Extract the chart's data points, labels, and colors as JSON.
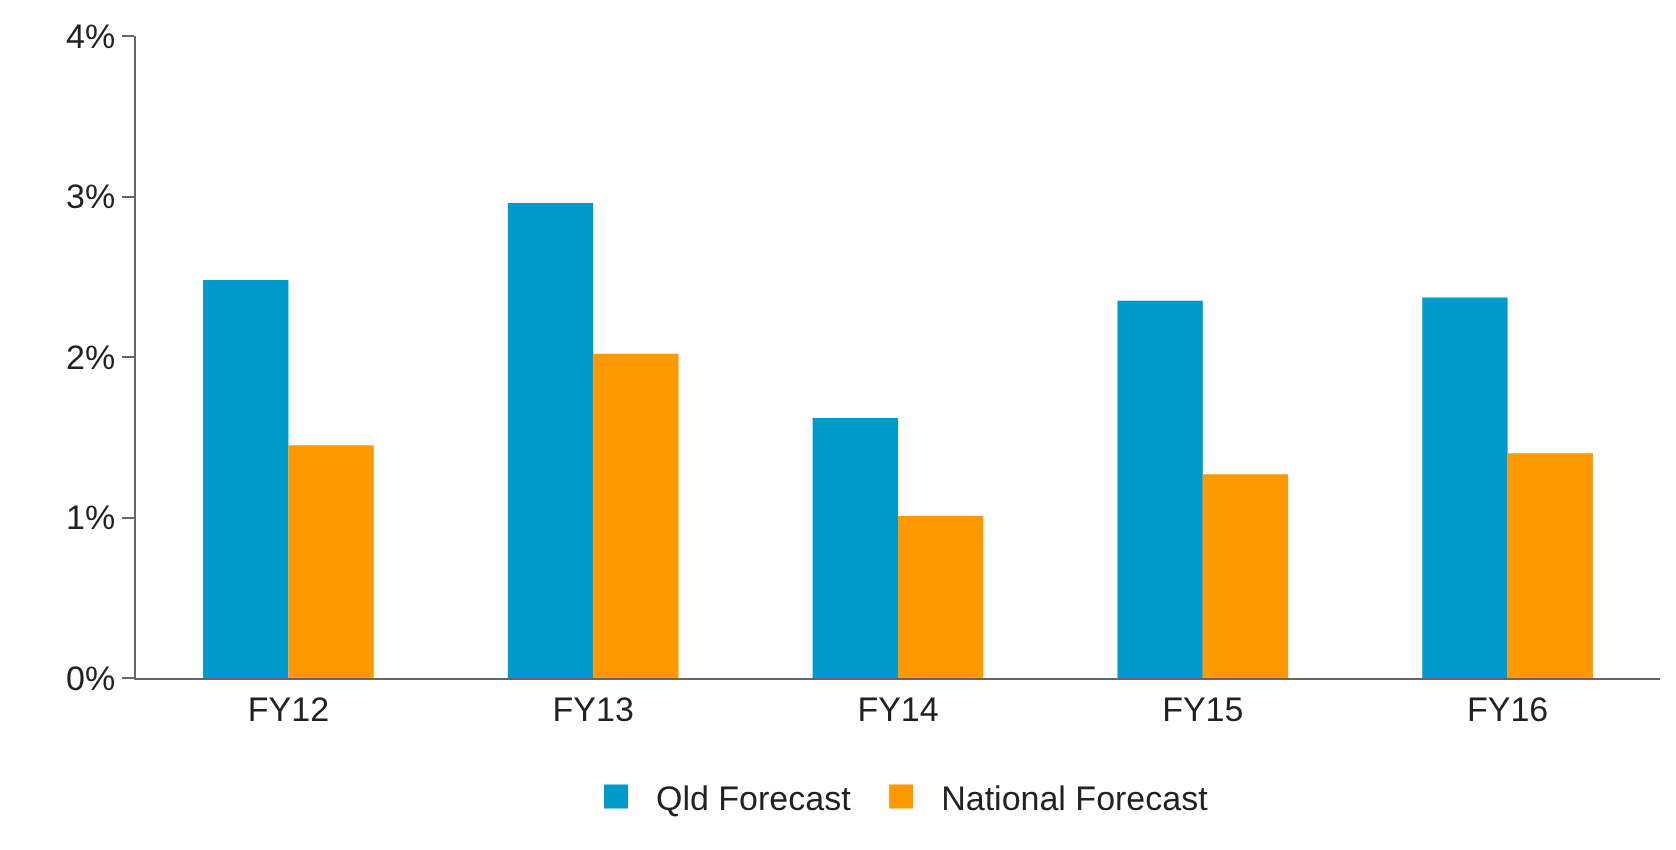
{
  "chart_data": {
    "type": "bar",
    "categories": [
      "FY12",
      "FY13",
      "FY14",
      "FY15",
      "FY16"
    ],
    "series": [
      {
        "name": "Qld Forecast",
        "color": "#0099cc",
        "values": [
          2.48,
          2.96,
          1.62,
          2.35,
          2.37
        ]
      },
      {
        "name": "National Forecast",
        "color": "#ff9900",
        "values": [
          1.45,
          2.02,
          1.01,
          1.27,
          1.4
        ]
      }
    ],
    "ylim": [
      0,
      4
    ],
    "yticks": [
      {
        "value": 0,
        "label": "0%"
      },
      {
        "value": 1,
        "label": "1%"
      },
      {
        "value": 2,
        "label": "2%"
      },
      {
        "value": 3,
        "label": "3%"
      },
      {
        "value": 4,
        "label": "4%"
      }
    ],
    "grid": false,
    "legend": "bottom"
  }
}
